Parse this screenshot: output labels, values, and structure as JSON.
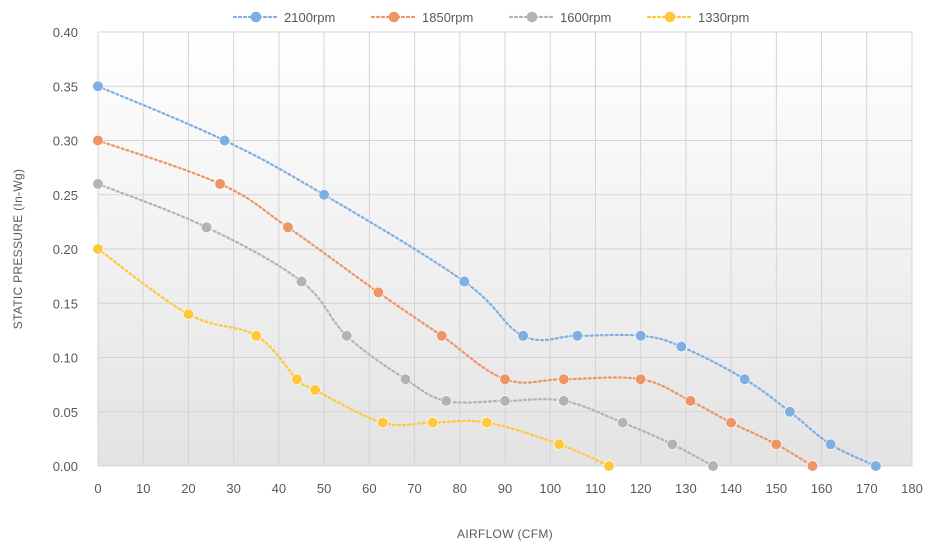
{
  "chart_data": {
    "type": "line",
    "xlabel": "AIRFLOW  (CFM)",
    "ylabel": "STATIC PRESSURE (In-Wg)",
    "xlim": [
      0,
      180
    ],
    "ylim": [
      0,
      0.4
    ],
    "xticks": [
      "0",
      "10",
      "20",
      "30",
      "40",
      "50",
      "60",
      "70",
      "80",
      "90",
      "100",
      "110",
      "120",
      "130",
      "140",
      "150",
      "160",
      "170",
      "180"
    ],
    "yticks": [
      "0.00",
      "0.05",
      "0.10",
      "0.15",
      "0.20",
      "0.25",
      "0.30",
      "0.35",
      "0.40"
    ],
    "grid": true,
    "legend_position": "top",
    "smooth": true,
    "series": [
      {
        "name": "2100rpm",
        "color": "#7eaee2",
        "x": [
          0,
          28,
          50,
          81,
          94,
          106,
          120,
          129,
          143,
          153,
          162,
          172
        ],
        "y": [
          0.35,
          0.3,
          0.25,
          0.17,
          0.12,
          0.12,
          0.12,
          0.11,
          0.08,
          0.05,
          0.02,
          0.0
        ]
      },
      {
        "name": "1850rpm",
        "color": "#ef9465",
        "x": [
          0,
          27,
          42,
          62,
          76,
          90,
          103,
          120,
          131,
          140,
          150,
          158
        ],
        "y": [
          0.3,
          0.26,
          0.22,
          0.16,
          0.12,
          0.08,
          0.08,
          0.08,
          0.06,
          0.04,
          0.02,
          0.0
        ]
      },
      {
        "name": "1600rpm",
        "color": "#b3b3b3",
        "x": [
          0,
          24,
          45,
          55,
          68,
          77,
          90,
          103,
          116,
          127,
          136
        ],
        "y": [
          0.26,
          0.22,
          0.17,
          0.12,
          0.08,
          0.06,
          0.06,
          0.06,
          0.04,
          0.02,
          0.0
        ]
      },
      {
        "name": "1330rpm",
        "color": "#ffc83a",
        "x": [
          0,
          20,
          35,
          44,
          48,
          63,
          74,
          86,
          102,
          113
        ],
        "y": [
          0.2,
          0.14,
          0.12,
          0.08,
          0.07,
          0.04,
          0.04,
          0.04,
          0.02,
          0.0
        ]
      }
    ]
  }
}
